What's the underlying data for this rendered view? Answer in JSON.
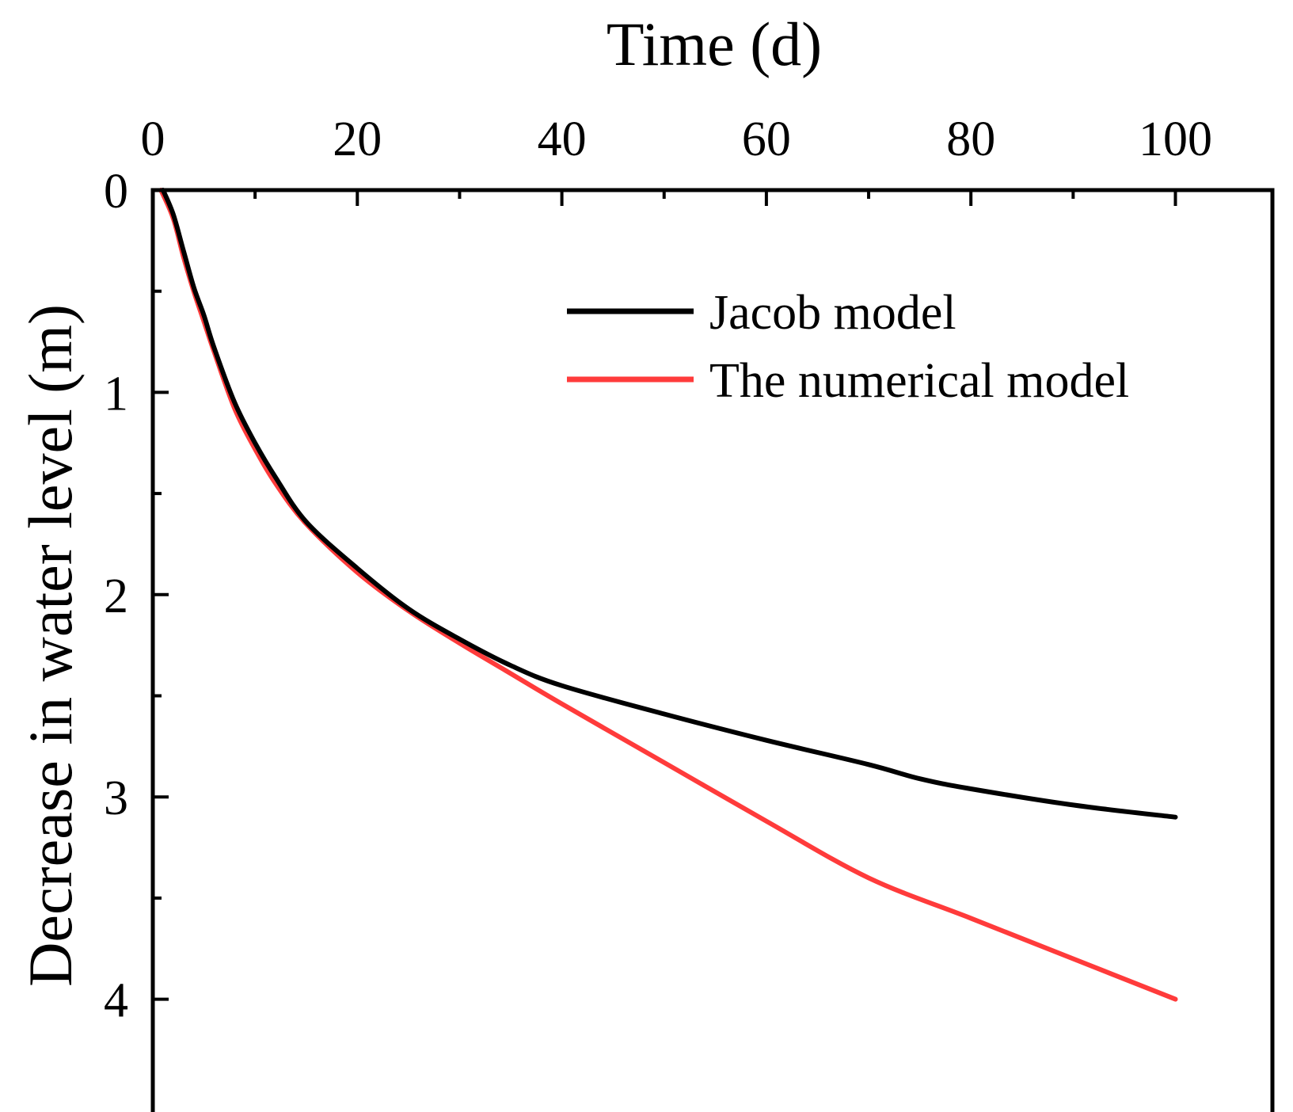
{
  "chart_data": {
    "type": "line",
    "title": "",
    "xlabel": "Time (d)",
    "ylabel": "Decrease in water level (m)",
    "x_axis_position": "top",
    "y_axis_inverted": true,
    "xlim": [
      0,
      110
    ],
    "ylim": [
      0,
      4.6
    ],
    "x_major_ticks": [
      0,
      20,
      40,
      60,
      80,
      100
    ],
    "x_tick_labels": [
      "0",
      "20",
      "40",
      "60",
      "80",
      "100"
    ],
    "x_minor_ticks": [
      10,
      30,
      50,
      70,
      90
    ],
    "y_major_ticks": [
      0,
      1,
      2,
      3,
      4
    ],
    "y_tick_labels": [
      "0",
      "1",
      "2",
      "3",
      "4"
    ],
    "y_minor_ticks": [
      0.5,
      1.5,
      2.5,
      3.5
    ],
    "grid": false,
    "legend_position": "top-right",
    "series": [
      {
        "name": "Jacob model",
        "color": "#000000",
        "x": [
          1,
          2,
          3,
          4,
          5,
          6,
          8,
          10,
          12,
          15,
          20,
          25,
          30,
          35,
          40,
          50,
          60,
          70,
          75,
          80,
          90,
          100
        ],
        "y": [
          0.0,
          0.12,
          0.3,
          0.48,
          0.62,
          0.78,
          1.05,
          1.25,
          1.42,
          1.64,
          1.87,
          2.07,
          2.22,
          2.35,
          2.45,
          2.59,
          2.72,
          2.84,
          2.91,
          2.96,
          3.04,
          3.1
        ]
      },
      {
        "name": "The numerical model",
        "color": "#ff3b3b",
        "x": [
          0.8,
          2,
          3,
          4,
          5,
          6,
          8,
          10,
          12,
          15,
          20,
          25,
          30,
          35,
          40,
          50,
          60,
          70,
          80,
          90,
          100
        ],
        "y": [
          0.0,
          0.14,
          0.33,
          0.5,
          0.65,
          0.8,
          1.08,
          1.28,
          1.45,
          1.65,
          1.89,
          2.08,
          2.24,
          2.39,
          2.54,
          2.83,
          3.12,
          3.4,
          3.6,
          3.8,
          4.0
        ]
      }
    ]
  }
}
